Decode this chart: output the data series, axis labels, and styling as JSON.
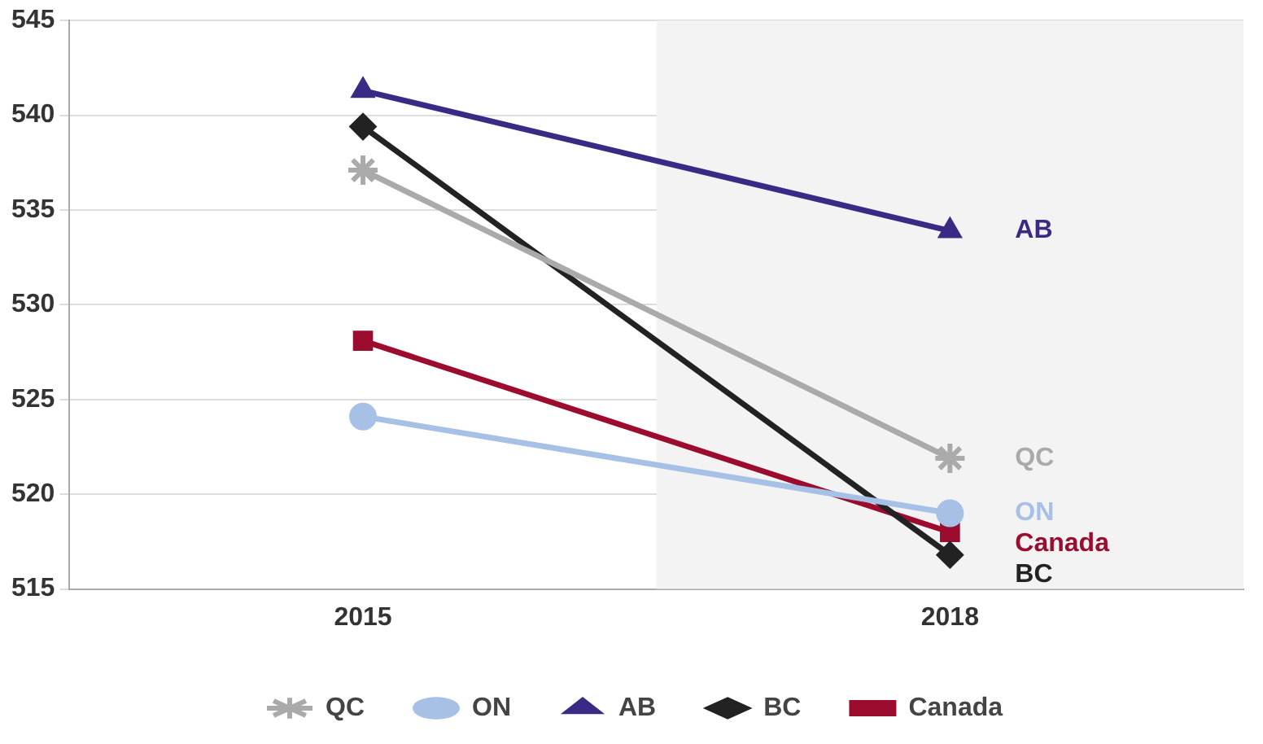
{
  "chart_data": {
    "type": "line",
    "categories": [
      "2015",
      "2018"
    ],
    "series": [
      {
        "name": "QC",
        "color": "#aaaaaa",
        "marker": "cross",
        "values": [
          537.1,
          521.9
        ]
      },
      {
        "name": "ON",
        "color": "#a7c0e6",
        "marker": "circle",
        "values": [
          524.1,
          519.0
        ]
      },
      {
        "name": "AB",
        "color": "#3b2a85",
        "marker": "triangle",
        "values": [
          541.3,
          533.9
        ]
      },
      {
        "name": "BC",
        "color": "#222222",
        "marker": "diamond",
        "values": [
          539.4,
          516.8
        ]
      },
      {
        "name": "Canada",
        "color": "#9b0c2e",
        "marker": "square",
        "values": [
          528.1,
          518.0
        ]
      }
    ],
    "ylim": [
      515,
      545
    ],
    "yticks": [
      515,
      520,
      525,
      530,
      535,
      540,
      545
    ],
    "grid": "y",
    "legend": "bottom",
    "bands": [
      {
        "axis": "x",
        "from": "2018",
        "to": "2018",
        "color": "#f3f3f3"
      }
    ]
  }
}
